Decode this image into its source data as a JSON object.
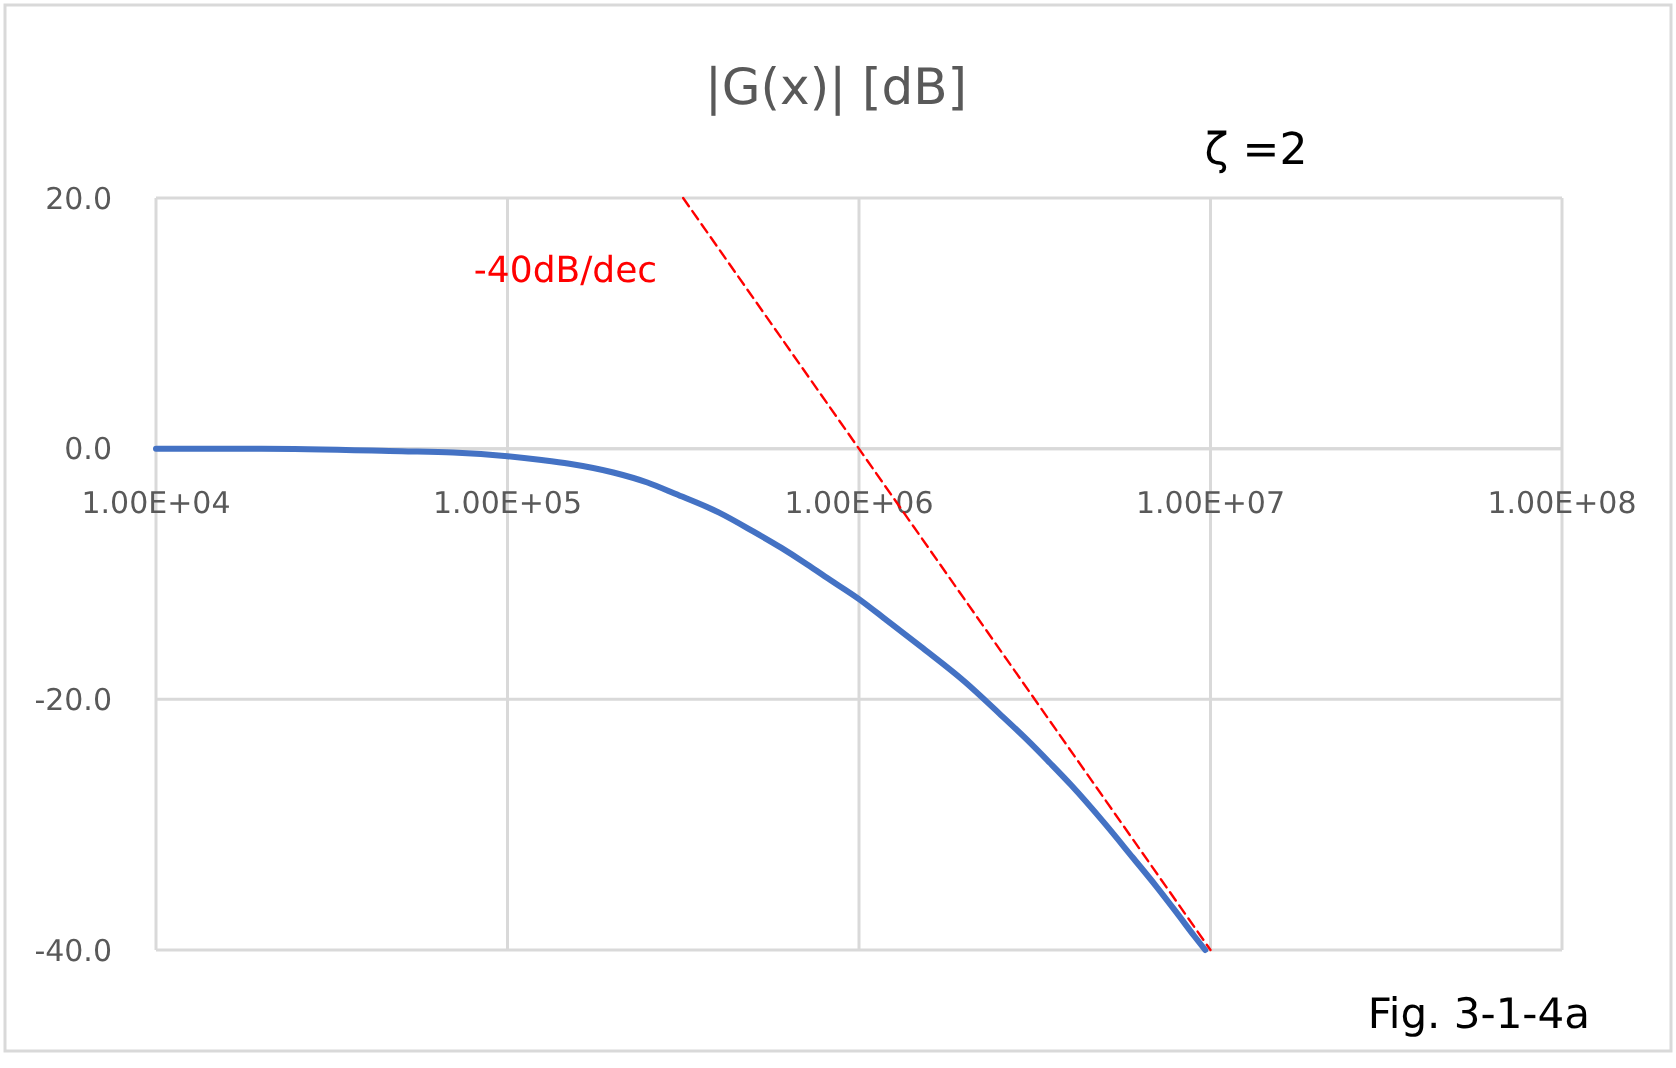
{
  "chart_data": {
    "type": "line",
    "title": "|G(x)| [dB]",
    "annotations": [
      "ζ =2",
      "Fig. 3-1-4a"
    ],
    "x": [
      10000,
      20000,
      50000,
      70000,
      100000,
      125000,
      150000,
      200000,
      250000,
      300000,
      400000,
      500000,
      600000,
      700000,
      800000,
      1000000,
      1200000,
      1500000,
      2000000,
      2500000,
      3000000,
      3500000,
      4000000,
      5000000,
      6000000,
      7000000,
      8000000,
      9000000,
      9660000
    ],
    "series": [
      {
        "color": "#4472c4",
        "values": [
          0,
          0,
          -0.2,
          -0.3,
          -0.6,
          -0.9,
          -1.2,
          -1.9,
          -2.7,
          -3.6,
          -5.1,
          -6.6,
          -7.9,
          -9.1,
          -10.2,
          -12,
          -13.7,
          -15.8,
          -18.6,
          -21.1,
          -23.2,
          -25.1,
          -26.8,
          -29.9,
          -32.6,
          -34.9,
          -37,
          -38.9,
          -40
        ]
      },
      {
        "name": "-40dB/dec",
        "color": "#ff0000",
        "line_style": "dashed",
        "x": [
          316000,
          10000000
        ],
        "values": [
          20,
          -40
        ]
      }
    ],
    "xlim": [
      10000,
      100000000
    ],
    "ylim": [
      -40,
      20
    ],
    "xticks": [
      {
        "value": 10000,
        "label": "1.00E+04"
      },
      {
        "value": 100000,
        "label": "1.00E+05"
      },
      {
        "value": 1000000,
        "label": "1.00E+06"
      },
      {
        "value": 10000000,
        "label": "1.00E+07"
      },
      {
        "value": 100000000,
        "label": "1.00E+08"
      }
    ],
    "yticks": [
      {
        "value": -40,
        "label": "-40.0"
      },
      {
        "value": -20,
        "label": "-20.0"
      },
      {
        "value": 0,
        "label": "0.0"
      },
      {
        "value": 20,
        "label": "20.0"
      }
    ],
    "log": "x",
    "grid": true
  }
}
